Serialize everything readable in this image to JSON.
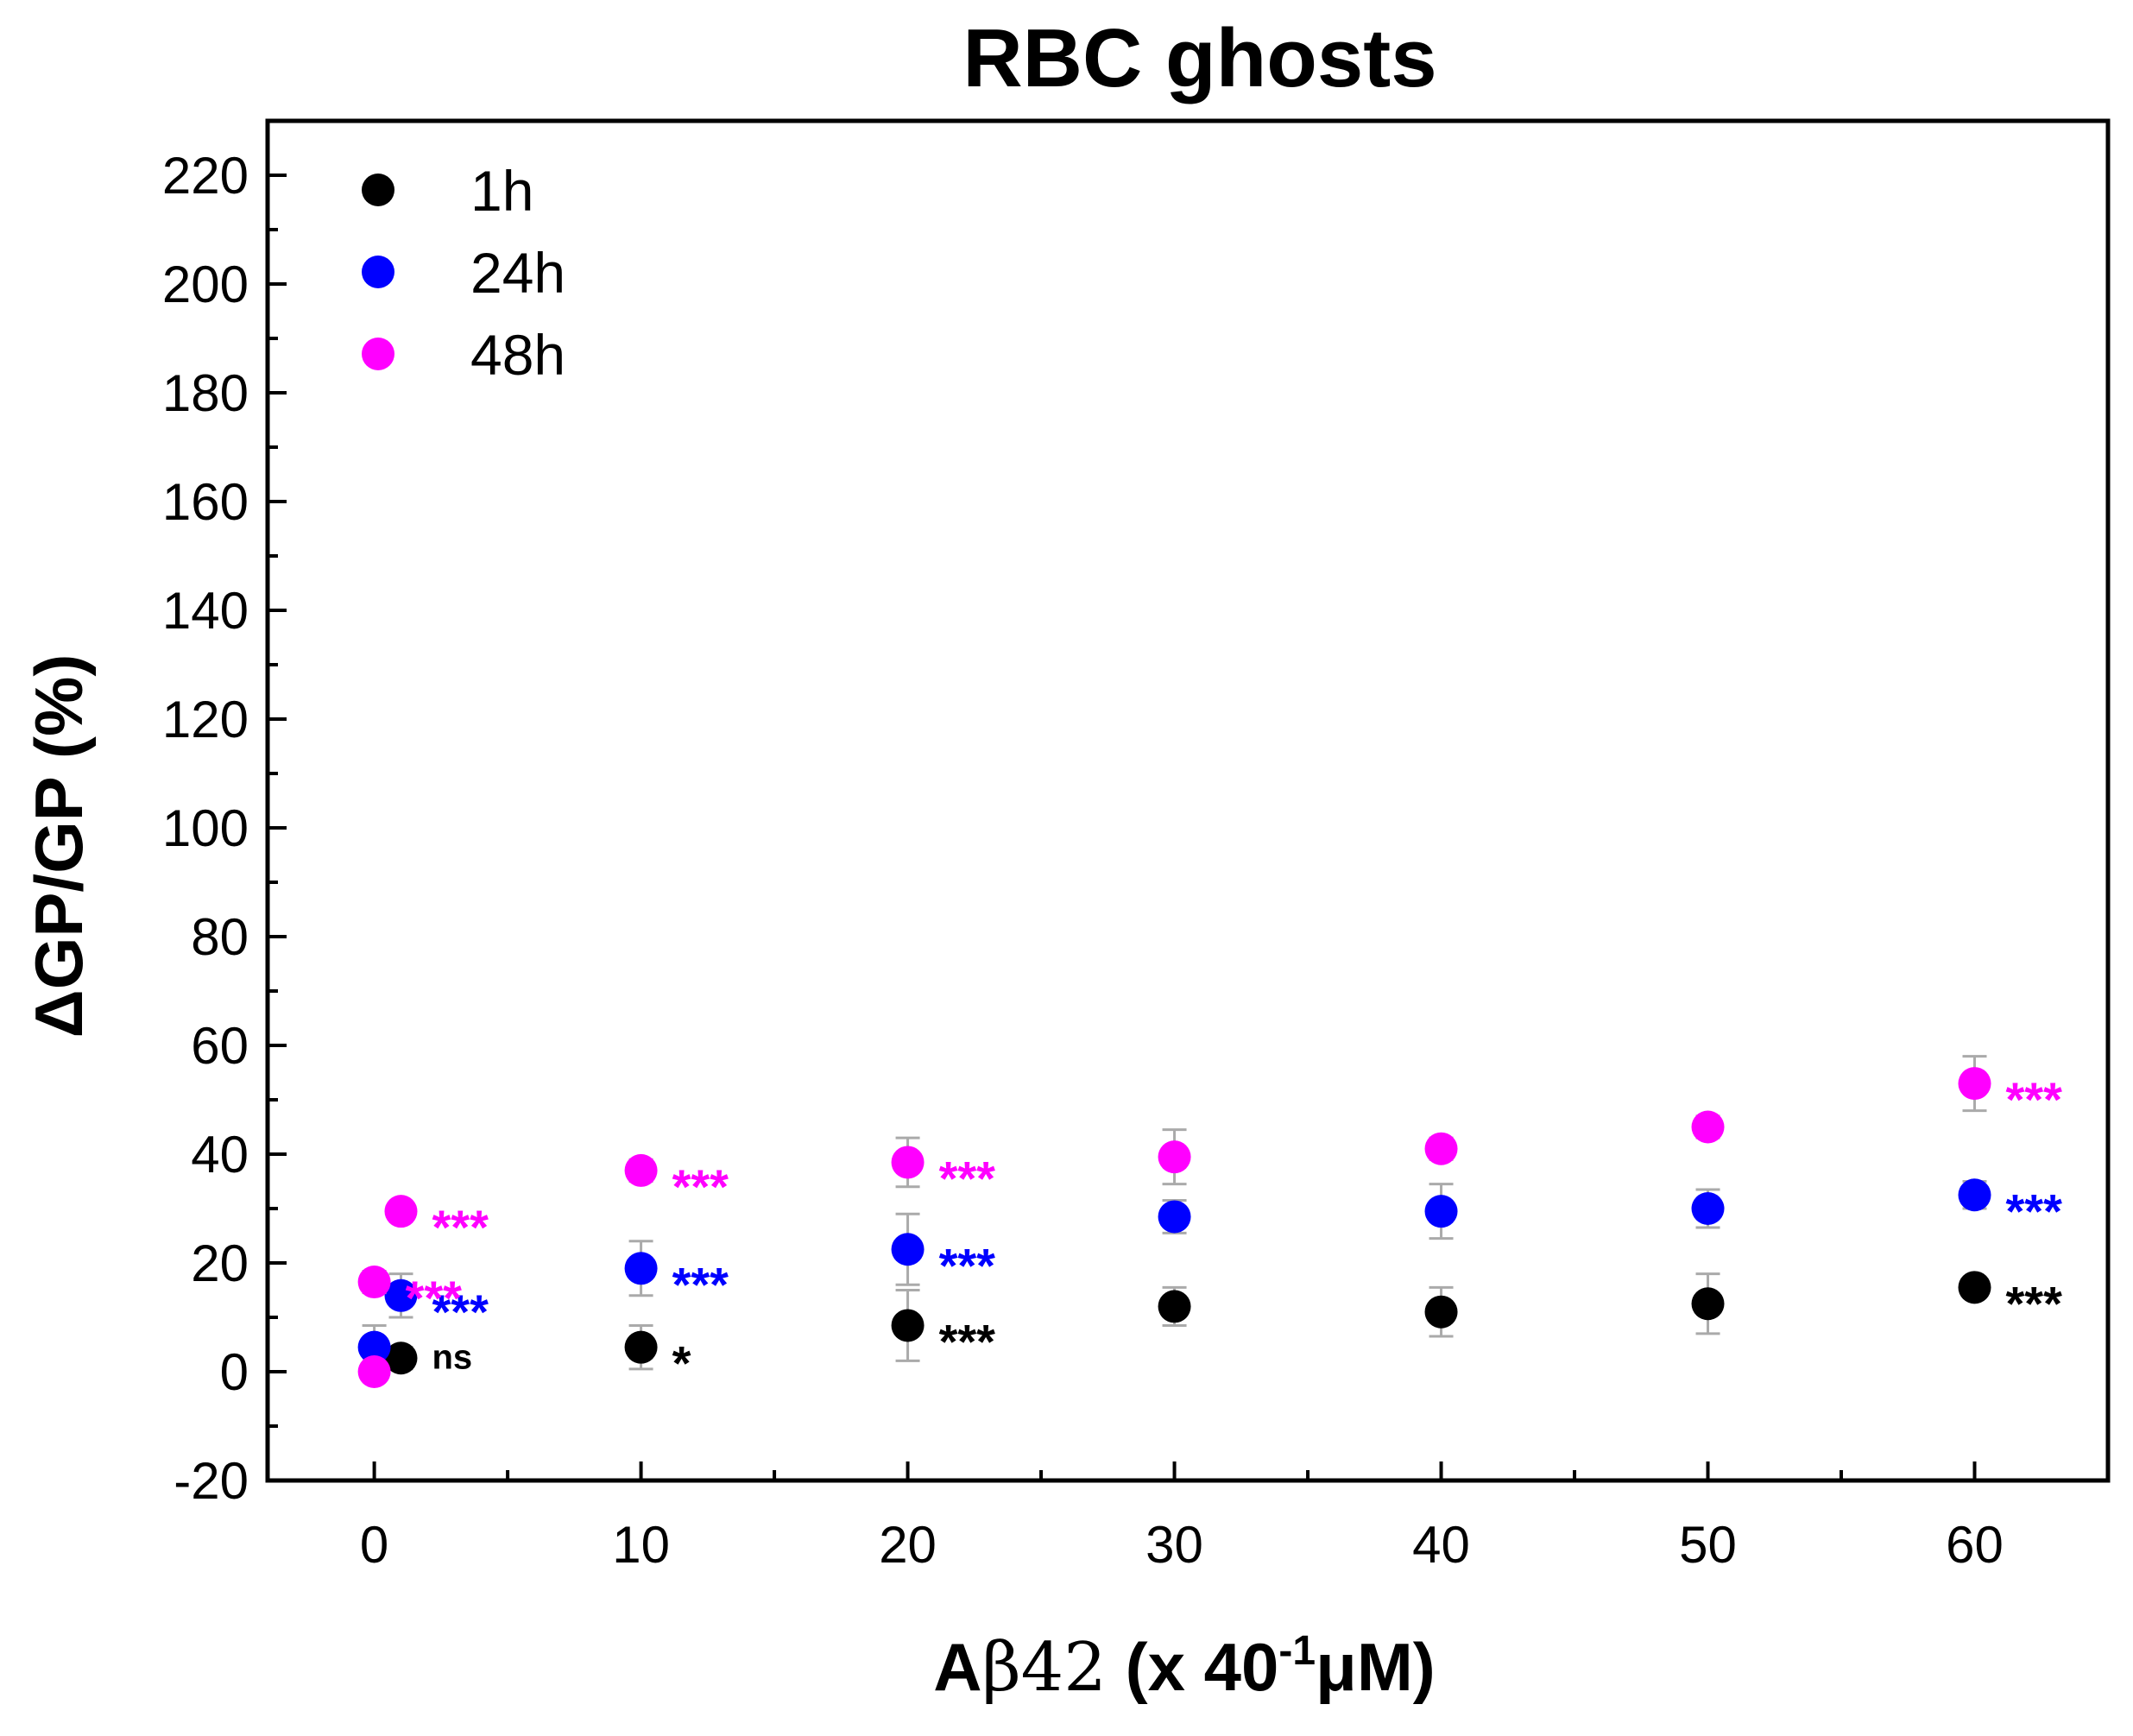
{
  "chart_data": {
    "type": "scatter",
    "title": "RBC ghosts",
    "xlabel_prefix": "A",
    "xlabel_beta": "β42",
    "xlabel_mid": " (x 40",
    "xlabel_sup": "-1",
    "xlabel_suffix": "μM)",
    "ylabel": "ΔGP/GP (%)",
    "xlim": [
      -4,
      65
    ],
    "ylim": [
      -20,
      230
    ],
    "x_ticks": [
      0,
      10,
      20,
      30,
      40,
      50,
      60
    ],
    "x_tick_labels": [
      "0",
      "10",
      "20",
      "30",
      "40",
      "50",
      "60"
    ],
    "x_minor_ticks": [
      5,
      15,
      25,
      35,
      45,
      55
    ],
    "y_ticks": [
      -20,
      0,
      20,
      40,
      60,
      80,
      100,
      120,
      140,
      160,
      180,
      200,
      220
    ],
    "y_tick_labels": [
      "-20",
      "0",
      "20",
      "40",
      "60",
      "80",
      "100",
      "120",
      "140",
      "160",
      "180",
      "200",
      "220"
    ],
    "y_minor_ticks": [
      -10,
      10,
      30,
      50,
      70,
      90,
      110,
      130,
      150,
      170,
      190,
      210
    ],
    "grid": false,
    "legend_position": "top-left",
    "series": [
      {
        "name": "1h",
        "color": "#000000",
        "points": [
          {
            "x": 1,
            "y": 2.5,
            "err": 2.0,
            "sig": "ns"
          },
          {
            "x": 10,
            "y": 4.5,
            "err": 4.0,
            "sig": "*"
          },
          {
            "x": 20,
            "y": 8.5,
            "err": 6.5,
            "sig": "***"
          },
          {
            "x": 30,
            "y": 12,
            "err": 3.5,
            "sig": ""
          },
          {
            "x": 40,
            "y": 11,
            "err": 4.5,
            "sig": ""
          },
          {
            "x": 50,
            "y": 12.5,
            "err": 5.5,
            "sig": ""
          },
          {
            "x": 60,
            "y": 15.5,
            "err": 1.5,
            "sig": "***"
          }
        ]
      },
      {
        "name": "24h",
        "color": "#0000ff",
        "points": [
          {
            "x": 0,
            "y": 4.5,
            "err": 4.0,
            "sig": ""
          },
          {
            "x": 1,
            "y": 14,
            "err": 4.0,
            "sig": "***"
          },
          {
            "x": 10,
            "y": 19,
            "err": 5.0,
            "sig": "***"
          },
          {
            "x": 20,
            "y": 22.5,
            "err": 6.5,
            "sig": "***"
          },
          {
            "x": 30,
            "y": 28.5,
            "err": 3.0,
            "sig": ""
          },
          {
            "x": 40,
            "y": 29.5,
            "err": 5.0,
            "sig": ""
          },
          {
            "x": 50,
            "y": 30,
            "err": 3.5,
            "sig": ""
          },
          {
            "x": 60,
            "y": 32.5,
            "err": 2.5,
            "sig": "***"
          }
        ]
      },
      {
        "name": "48h",
        "color": "#ff00ff",
        "points": [
          {
            "x": 0,
            "y": 0,
            "err": 1.5,
            "sig": ""
          },
          {
            "x": 0,
            "y": 16.5,
            "err": 2.0,
            "sig": "***"
          },
          {
            "x": 1,
            "y": 29.5,
            "err": 1.5,
            "sig": "***"
          },
          {
            "x": 10,
            "y": 37,
            "err": 2.0,
            "sig": "***"
          },
          {
            "x": 20,
            "y": 38.5,
            "err": 4.5,
            "sig": "***"
          },
          {
            "x": 30,
            "y": 39.5,
            "err": 5.0,
            "sig": ""
          },
          {
            "x": 40,
            "y": 41,
            "err": 2.0,
            "sig": ""
          },
          {
            "x": 50,
            "y": 45,
            "err": 2.0,
            "sig": ""
          },
          {
            "x": 60,
            "y": 53,
            "err": 5.0,
            "sig": "***"
          }
        ]
      }
    ]
  }
}
